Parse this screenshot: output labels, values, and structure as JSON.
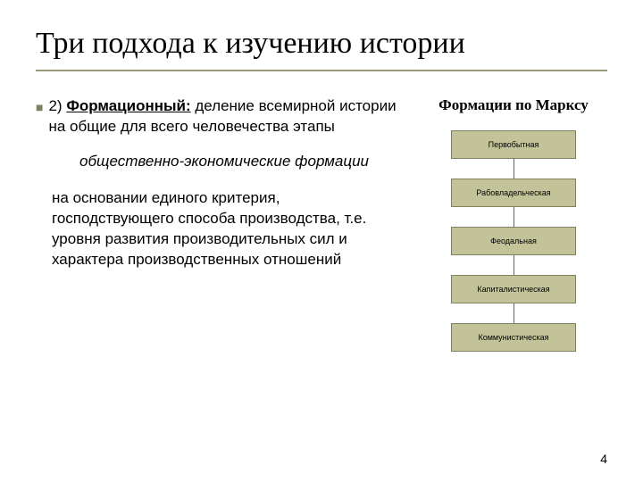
{
  "title": "Три подхода к изучению истории",
  "left": {
    "para1_prefix": "2) ",
    "para1_bold": "Формационный:",
    "para1_rest": " деление всемирной истории на общие для всего человечества этапы",
    "italic": "общественно-экономические формации",
    "para3": "на основании единого критерия, господствующего способа производства, т.е. уровня развития производительных сил и характера производственных отношений"
  },
  "right": {
    "heading": "Формации по Марксу",
    "nodes": [
      "Первобытная",
      "Рабовладельческая",
      "Феодальная",
      "Капиталистическая",
      "Коммунистическая"
    ],
    "node_bg": "#c3c399",
    "node_border": "#808060",
    "node_fontsize": 9
  },
  "pagenum": "4",
  "colors": {
    "underline": "#9a9a78",
    "bullet": "#808060"
  }
}
